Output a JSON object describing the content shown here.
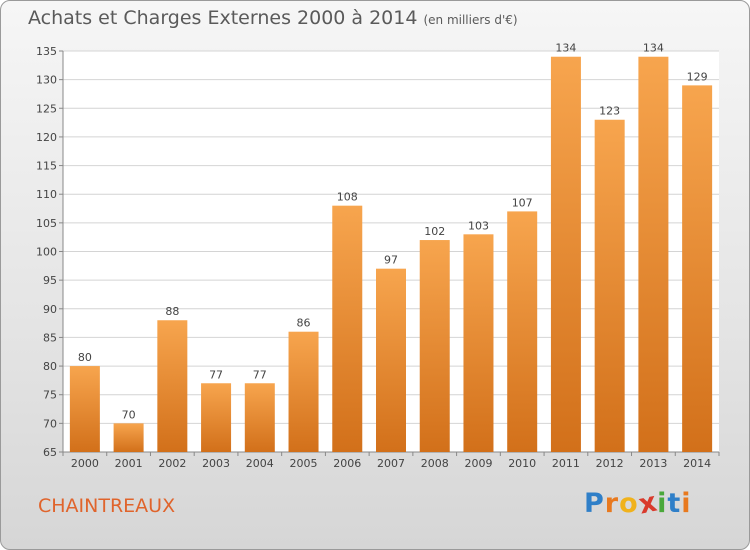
{
  "title": "Achats et Charges Externes 2000 à 2014",
  "unit": "(en milliers d'€)",
  "commune": "CHAINTREAUX",
  "logo": {
    "text": "Proxiti",
    "letters": [
      {
        "ch": "P",
        "color": "#2f7fc8"
      },
      {
        "ch": "r",
        "color": "#e8791e"
      },
      {
        "ch": "o",
        "color": "#f0b21c"
      },
      {
        "ch": "x",
        "color": "#d93a2c"
      },
      {
        "ch": "i",
        "color": "#4aa83a"
      },
      {
        "ch": "t",
        "color": "#2f7fc8"
      },
      {
        "ch": "i",
        "color": "#e8791e"
      }
    ]
  },
  "chart_data": {
    "type": "bar",
    "title": "Achats et Charges Externes 2000 à 2014",
    "categories": [
      "2000",
      "2001",
      "2002",
      "2003",
      "2004",
      "2005",
      "2006",
      "2007",
      "2008",
      "2009",
      "2010",
      "2011",
      "2012",
      "2013",
      "2014"
    ],
    "values": [
      80,
      70,
      88,
      77,
      77,
      86,
      108,
      97,
      102,
      103,
      107,
      134,
      123,
      134,
      129
    ],
    "ylim": [
      65,
      135
    ],
    "yticks": [
      65,
      70,
      75,
      80,
      85,
      90,
      95,
      100,
      105,
      110,
      115,
      120,
      125,
      130,
      135
    ],
    "grid": true,
    "bar_color_light": "#f7a54e",
    "bar_color_dark": "#d2701a",
    "plot_bg": "#ffffff"
  }
}
